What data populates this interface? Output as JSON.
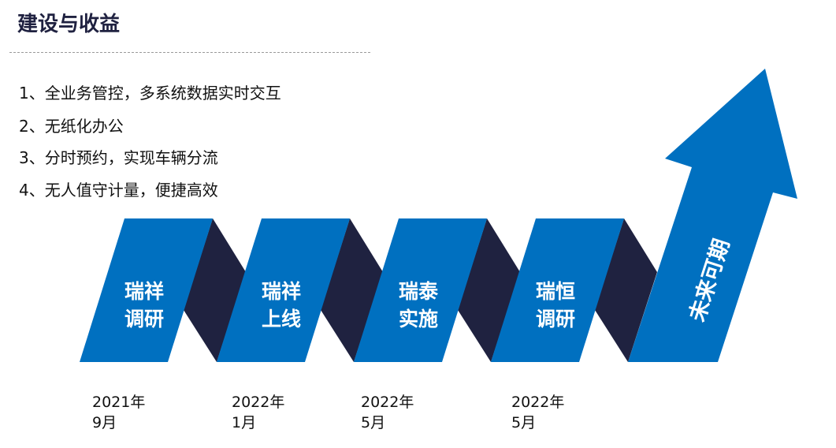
{
  "title": "建设与收益",
  "items": [
    "1、全业务管控，多系统数据实时交互",
    "2、无纸化办公",
    "3、分时预约，实现车辆分流",
    "4、无人值守计量，便捷高效"
  ],
  "stages": [
    {
      "line1": "瑞祥",
      "line2": "调研",
      "date1": "2021年",
      "date2": "9月"
    },
    {
      "line1": "瑞祥",
      "line2": "上线",
      "date1": "2022年",
      "date2": "1月"
    },
    {
      "line1": "瑞泰",
      "line2": "实施",
      "date1": "2022年",
      "date2": "5月"
    },
    {
      "line1": "瑞恒",
      "line2": "调研",
      "date1": "2022年",
      "date2": "5月"
    }
  ],
  "arrow_label": "未来可期",
  "colors": {
    "blue": "#0070c0",
    "dark": "#1f2240",
    "title": "#1f2140"
  }
}
